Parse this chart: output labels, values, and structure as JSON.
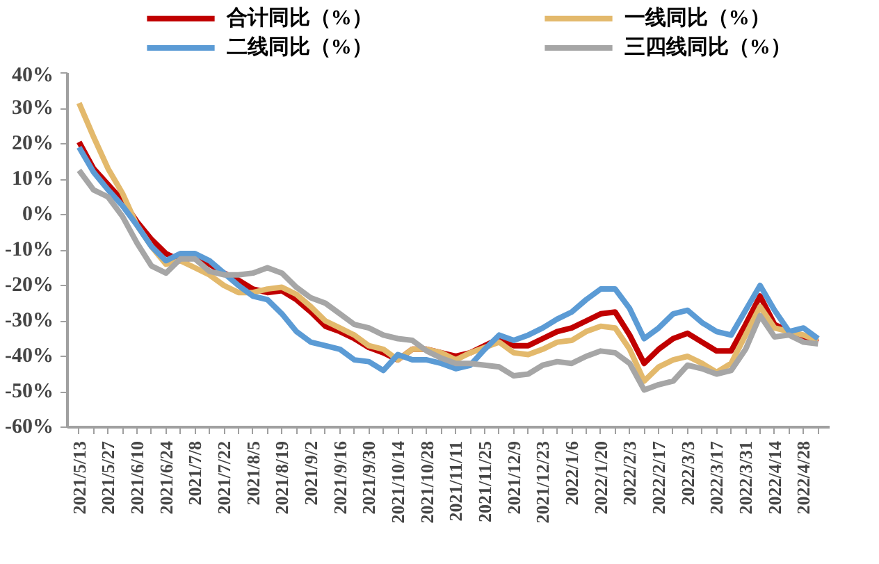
{
  "chart_data": {
    "type": "line",
    "categories": [
      "2021/5/13",
      null,
      "2021/5/27",
      null,
      "2021/6/10",
      null,
      "2021/6/24",
      null,
      "2021/7/8",
      null,
      "2021/7/22",
      null,
      "2021/8/5",
      null,
      "2021/8/19",
      null,
      "2021/9/2",
      null,
      "2021/9/16",
      null,
      "2021/9/30",
      null,
      "2021/10/14",
      null,
      "2021/10/28",
      null,
      "2021/11/11",
      null,
      "2021/11/25",
      null,
      "2021/12/9",
      null,
      "2021/12/23",
      null,
      "2022/1/6",
      null,
      "2022/1/20",
      null,
      "2022/2/3",
      null,
      "2022/2/17",
      null,
      "2022/3/3",
      null,
      "2022/3/17",
      null,
      "2022/3/31",
      null,
      "2022/4/14",
      null,
      "2022/4/28",
      null
    ],
    "series": [
      {
        "name": "合计同比（%）",
        "color": "#c00000",
        "values": [
          20.5,
          13,
          8.5,
          4,
          -2,
          -7,
          -11,
          -13,
          -12,
          -14,
          -16.5,
          -18.5,
          -21,
          -22,
          -21.5,
          -24,
          -27.5,
          -31.5,
          -33,
          -35,
          -37.5,
          -39,
          -41,
          -38,
          -38,
          -39,
          -40,
          -39,
          -37,
          -35,
          -37,
          -37,
          -35,
          -33,
          -32,
          -30,
          -28,
          -27.5,
          -34,
          -42,
          -38,
          -35,
          -33.5,
          -36,
          -38.5,
          -38.5,
          -31,
          -23,
          -31,
          -33,
          -34.5,
          -36
        ]
      },
      {
        "name": "一线同比（%）",
        "color": "#e3b96c",
        "values": [
          31.5,
          22,
          13,
          6,
          -3,
          -9,
          -14,
          -13,
          -15,
          -17,
          -20,
          -22,
          -22,
          -21,
          -20.5,
          -22.5,
          -26,
          -30,
          -32,
          -34,
          -37,
          -38,
          -41,
          -38,
          -38,
          -39,
          -41,
          -39,
          -37.5,
          -36,
          -39,
          -39.5,
          -38,
          -36,
          -35.5,
          -33,
          -31.5,
          -32,
          -38,
          -47,
          -43,
          -41,
          -40,
          -42,
          -44.5,
          -42,
          -34,
          -26,
          -32,
          -33,
          -34,
          -35.5
        ]
      },
      {
        "name": "二线同比（%）",
        "color": "#5b9bd5",
        "values": [
          19,
          12,
          7,
          2.5,
          -3,
          -9,
          -13,
          -11,
          -11,
          -13,
          -16.5,
          -20,
          -23,
          -24,
          -28,
          -33,
          -36,
          -37,
          -38,
          -41,
          -41.5,
          -44,
          -39.5,
          -41,
          -41,
          -42,
          -43.5,
          -42.5,
          -38,
          -34,
          -35.5,
          -34,
          -32,
          -29.5,
          -27.5,
          -24,
          -21,
          -21,
          -26.5,
          -35,
          -32,
          -28,
          -27,
          -30.5,
          -33,
          -34,
          -27,
          -20,
          -27,
          -33,
          -32,
          -35
        ]
      },
      {
        "name": "三四线同比（%）",
        "color": "#a6a6a6",
        "values": [
          12.5,
          7,
          5,
          -0.5,
          -8,
          -14.5,
          -16.5,
          -12.5,
          -12.5,
          -16,
          -17,
          -17,
          -16.5,
          -15,
          -16.5,
          -20.5,
          -23.5,
          -25,
          -28,
          -31,
          -32,
          -34,
          -35,
          -35.5,
          -38.5,
          -40.5,
          -42,
          -42,
          -42.5,
          -43,
          -45.5,
          -45,
          -42.5,
          -41.5,
          -42,
          -40,
          -38.5,
          -39,
          -42,
          -49.5,
          -48,
          -47,
          -42.5,
          -43.5,
          -45,
          -44,
          -38,
          -28.5,
          -34.5,
          -34,
          -36,
          -36.5
        ]
      }
    ],
    "ylim": [
      -60,
      40
    ],
    "yticks": [
      {
        "value": 40,
        "label": "40%"
      },
      {
        "value": 30,
        "label": "30%"
      },
      {
        "value": 20,
        "label": "20%"
      },
      {
        "value": 10,
        "label": "10%"
      },
      {
        "value": 0,
        "label": "0%"
      },
      {
        "value": -10,
        "label": "-10%"
      },
      {
        "value": -20,
        "label": "-20%"
      },
      {
        "value": -30,
        "label": "-30%"
      },
      {
        "value": -40,
        "label": "-40%"
      },
      {
        "value": -50,
        "label": "-50%"
      },
      {
        "value": -60,
        "label": "-60%"
      }
    ],
    "grid": false,
    "legend": "top",
    "line_style": "solid",
    "marker": "none"
  }
}
